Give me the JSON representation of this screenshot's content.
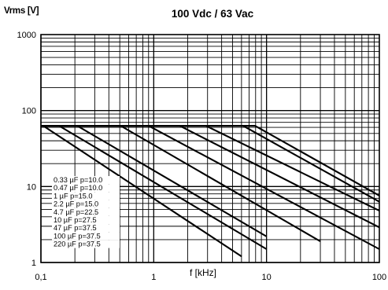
{
  "chart_data": {
    "type": "line",
    "title": "100 Vdc / 63 Vac",
    "xlabel": "f [kHz]",
    "ylabel": "Vrms [V]",
    "x_scale": "log",
    "y_scale": "log",
    "xlim": [
      0.1,
      100
    ],
    "ylim": [
      1,
      1000
    ],
    "grid": true,
    "x_ticks": [
      "0,1",
      "1",
      "10",
      "100"
    ],
    "y_ticks": [
      "1",
      "10",
      "100",
      "1000"
    ],
    "legend_position": "lower-left",
    "series": [
      {
        "name": "0.33 µF p=10.0",
        "x": [
          0.1,
          7.9,
          100
        ],
        "y": [
          63,
          63,
          7.6
        ]
      },
      {
        "name": "0.47 µF p=10.0",
        "x": [
          0.1,
          6.2,
          100
        ],
        "y": [
          63,
          63,
          6.3
        ]
      },
      {
        "name": "1 µF p=15.0",
        "x": [
          0.1,
          2.9,
          100
        ],
        "y": [
          63,
          63,
          4.8
        ]
      },
      {
        "name": "2.2 µF p=15.0",
        "x": [
          0.1,
          1.7,
          100
        ],
        "y": [
          63,
          63,
          2.9
        ]
      },
      {
        "name": "4.7 µF p=22.5",
        "x": [
          0.1,
          0.9,
          100
        ],
        "y": [
          63,
          63,
          1.5
        ]
      },
      {
        "name": "10 µF p=27.5",
        "x": [
          0.1,
          0.51,
          30
        ],
        "y": [
          63,
          63,
          1.9
        ]
      },
      {
        "name": "47 µF p=37.5",
        "x": [
          0.1,
          0.21,
          10
        ],
        "y": [
          63,
          63,
          2.2
        ]
      },
      {
        "name": "100 µF p=37.5",
        "x": [
          0.1,
          0.145,
          10
        ],
        "y": [
          63,
          63,
          1.5
        ]
      },
      {
        "name": "220 µF p=37.5",
        "x": [
          0.1,
          0.105,
          6
        ],
        "y": [
          63,
          63,
          1.2
        ]
      }
    ]
  }
}
